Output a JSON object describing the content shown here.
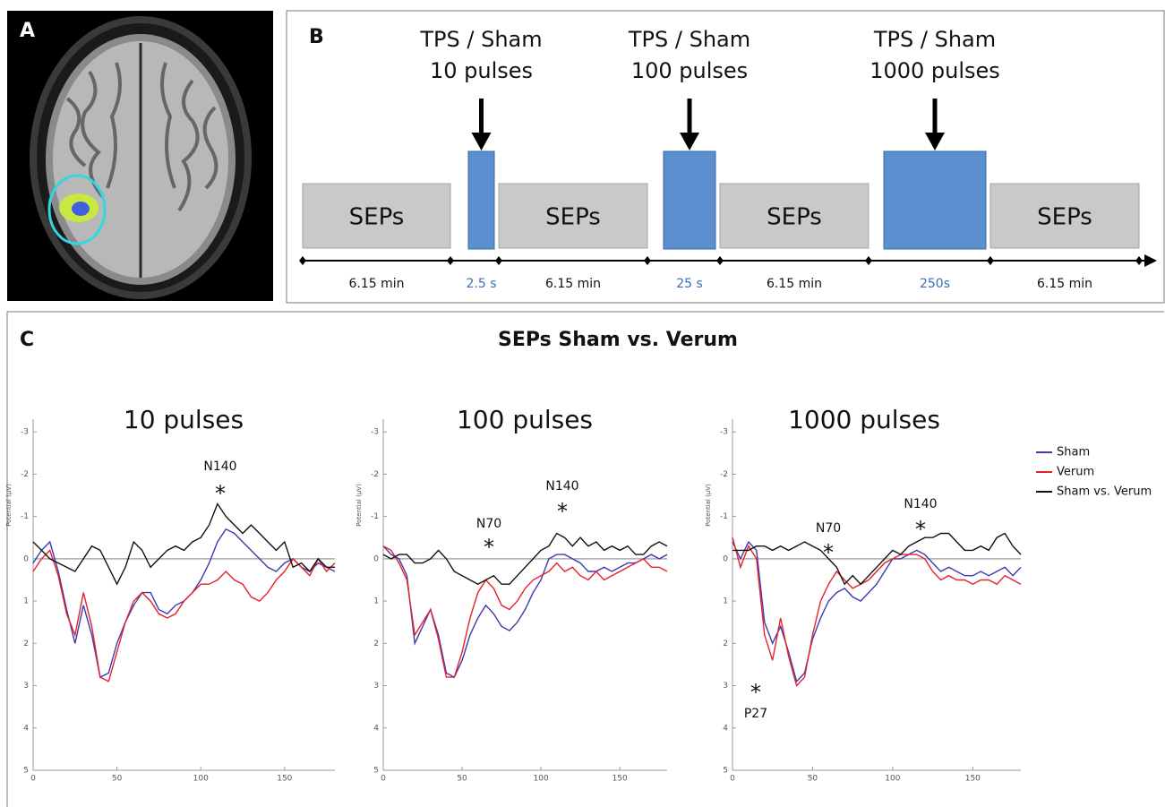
{
  "panel_a": {
    "label": "A"
  },
  "panel_b": {
    "label": "B",
    "stimulations": [
      {
        "title": "TPS / Sham",
        "pulses": "10 pulses",
        "duration": "2.5 s"
      },
      {
        "title": "TPS / Sham",
        "pulses": "100 pulses",
        "duration": "25 s"
      },
      {
        "title": "TPS / Sham",
        "pulses": "1000 pulses",
        "duration": "250s"
      }
    ],
    "blocks": [
      {
        "label": "SEPs",
        "duration": "6.15 min"
      },
      {
        "label": "SEPs",
        "duration": "6.15 min"
      },
      {
        "label": "SEPs",
        "duration": "6.15 min"
      },
      {
        "label": "SEPs",
        "duration": "6.15 min"
      }
    ]
  },
  "panel_c": {
    "label": "C",
    "title": "SEPs Sham vs. Verum"
  },
  "chart_data": [
    {
      "type": "line",
      "title": "10 pulses",
      "ylabel": "Potential (µV)",
      "x": [
        0,
        5,
        10,
        15,
        20,
        25,
        30,
        35,
        40,
        45,
        50,
        55,
        60,
        65,
        70,
        75,
        80,
        85,
        90,
        95,
        100,
        105,
        110,
        115,
        120,
        125,
        130,
        135,
        140,
        145,
        150,
        155,
        160,
        165,
        170,
        175,
        180
      ],
      "xlim": [
        0,
        180
      ],
      "xticks": [
        0,
        50,
        100,
        150
      ],
      "ylim": [
        -3.3,
        5
      ],
      "yticks": [
        -3,
        -2,
        -1,
        0,
        1,
        2,
        3,
        4,
        5
      ],
      "y_inverted": true,
      "series": [
        {
          "color": "#3b3bb0",
          "values": [
            0.1,
            -0.2,
            -0.4,
            0.3,
            1.2,
            2.0,
            1.1,
            1.8,
            2.8,
            2.7,
            2.0,
            1.5,
            1.1,
            0.8,
            0.8,
            1.2,
            1.3,
            1.1,
            1.0,
            0.8,
            0.5,
            0.1,
            -0.4,
            -0.7,
            -0.6,
            -0.4,
            -0.2,
            0.0,
            0.2,
            0.3,
            0.1,
            0.0,
            0.2,
            0.3,
            0.1,
            0.2,
            0.3
          ]
        },
        {
          "color": "#e8202a",
          "values": [
            0.3,
            0.0,
            -0.2,
            0.4,
            1.3,
            1.8,
            0.8,
            1.6,
            2.8,
            2.9,
            2.2,
            1.5,
            1.0,
            0.8,
            1.0,
            1.3,
            1.4,
            1.3,
            1.0,
            0.8,
            0.6,
            0.6,
            0.5,
            0.3,
            0.5,
            0.6,
            0.9,
            1.0,
            0.8,
            0.5,
            0.3,
            0.0,
            0.2,
            0.4,
            0.0,
            0.3,
            0.1
          ]
        },
        {
          "color": "#111111",
          "values": [
            -0.4,
            -0.2,
            0.0,
            0.1,
            0.2,
            0.3,
            0.0,
            -0.3,
            -0.2,
            0.2,
            0.6,
            0.2,
            -0.4,
            -0.2,
            0.2,
            0.0,
            -0.2,
            -0.3,
            -0.2,
            -0.4,
            -0.5,
            -0.8,
            -1.3,
            -1.0,
            -0.8,
            -0.6,
            -0.8,
            -0.6,
            -0.4,
            -0.2,
            -0.4,
            0.2,
            0.1,
            0.3,
            0.0,
            0.2,
            0.2
          ]
        }
      ],
      "annotations": [
        {
          "label": "N140",
          "marker": "*"
        }
      ]
    },
    {
      "type": "line",
      "title": "100 pulses",
      "ylabel": "Potential (µV)",
      "x": [
        0,
        5,
        10,
        15,
        20,
        25,
        30,
        35,
        40,
        45,
        50,
        55,
        60,
        65,
        70,
        75,
        80,
        85,
        90,
        95,
        100,
        105,
        110,
        115,
        120,
        125,
        130,
        135,
        140,
        145,
        150,
        155,
        160,
        165,
        170,
        175,
        180
      ],
      "xlim": [
        0,
        180
      ],
      "xticks": [
        0,
        50,
        100,
        150
      ],
      "ylim": [
        -3.3,
        5
      ],
      "yticks": [
        -3,
        -2,
        -1,
        0,
        1,
        2,
        3,
        4,
        5
      ],
      "y_inverted": true,
      "series": [
        {
          "color": "#3b3bb0",
          "values": [
            -0.3,
            -0.1,
            0.0,
            0.4,
            2.0,
            1.6,
            1.2,
            1.8,
            2.7,
            2.8,
            2.4,
            1.8,
            1.4,
            1.1,
            1.3,
            1.6,
            1.7,
            1.5,
            1.2,
            0.8,
            0.5,
            0.0,
            -0.1,
            -0.1,
            0.0,
            0.1,
            0.3,
            0.3,
            0.2,
            0.3,
            0.2,
            0.1,
            0.1,
            0.0,
            -0.1,
            0.0,
            -0.1
          ]
        },
        {
          "color": "#e8202a",
          "values": [
            -0.3,
            -0.2,
            0.1,
            0.5,
            1.8,
            1.5,
            1.2,
            1.9,
            2.8,
            2.8,
            2.2,
            1.4,
            0.8,
            0.5,
            0.7,
            1.1,
            1.2,
            1.0,
            0.7,
            0.5,
            0.4,
            0.3,
            0.1,
            0.3,
            0.2,
            0.4,
            0.5,
            0.3,
            0.5,
            0.4,
            0.3,
            0.2,
            0.1,
            0.0,
            0.2,
            0.2,
            0.3
          ]
        },
        {
          "color": "#111111",
          "values": [
            -0.1,
            0.0,
            -0.1,
            -0.1,
            0.1,
            0.1,
            0.0,
            -0.2,
            0.0,
            0.3,
            0.4,
            0.5,
            0.6,
            0.5,
            0.4,
            0.6,
            0.6,
            0.4,
            0.2,
            0.0,
            -0.2,
            -0.3,
            -0.6,
            -0.5,
            -0.3,
            -0.5,
            -0.3,
            -0.4,
            -0.2,
            -0.3,
            -0.2,
            -0.3,
            -0.1,
            -0.1,
            -0.3,
            -0.4,
            -0.3
          ]
        }
      ],
      "annotations": [
        {
          "label": "N70",
          "marker": "*"
        },
        {
          "label": "N140",
          "marker": "*"
        }
      ]
    },
    {
      "type": "line",
      "title": "1000 pulses",
      "ylabel": "Potential (µV)",
      "x": [
        0,
        5,
        10,
        15,
        20,
        25,
        30,
        35,
        40,
        45,
        50,
        55,
        60,
        65,
        70,
        75,
        80,
        85,
        90,
        95,
        100,
        105,
        110,
        115,
        120,
        125,
        130,
        135,
        140,
        145,
        150,
        155,
        160,
        165,
        170,
        175,
        180
      ],
      "xlim": [
        0,
        180
      ],
      "xticks": [
        0,
        50,
        100,
        150
      ],
      "ylim": [
        -3.3,
        5
      ],
      "yticks": [
        -3,
        -2,
        -1,
        0,
        1,
        2,
        3,
        4,
        5
      ],
      "y_inverted": true,
      "series": [
        {
          "name": "Sham",
          "color": "#3b3bb0",
          "values": [
            -0.4,
            0.0,
            -0.4,
            -0.2,
            1.5,
            2.0,
            1.6,
            2.2,
            2.9,
            2.7,
            1.9,
            1.4,
            1.0,
            0.8,
            0.7,
            0.9,
            1.0,
            0.8,
            0.6,
            0.3,
            0.0,
            0.0,
            -0.1,
            -0.2,
            -0.1,
            0.1,
            0.3,
            0.2,
            0.3,
            0.4,
            0.4,
            0.3,
            0.4,
            0.3,
            0.2,
            0.4,
            0.2
          ]
        },
        {
          "name": "Verum",
          "color": "#e8202a",
          "values": [
            -0.5,
            0.2,
            -0.3,
            0.0,
            1.8,
            2.4,
            1.4,
            2.3,
            3.0,
            2.8,
            1.8,
            1.0,
            0.6,
            0.3,
            0.5,
            0.7,
            0.6,
            0.5,
            0.3,
            0.1,
            0.0,
            -0.1,
            -0.1,
            -0.1,
            0.0,
            0.3,
            0.5,
            0.4,
            0.5,
            0.5,
            0.6,
            0.5,
            0.5,
            0.6,
            0.4,
            0.5,
            0.6
          ]
        },
        {
          "name": "Sham vs. Verum",
          "color": "#111111",
          "values": [
            -0.2,
            -0.2,
            -0.2,
            -0.3,
            -0.3,
            -0.2,
            -0.3,
            -0.2,
            -0.3,
            -0.4,
            -0.3,
            -0.2,
            0.0,
            0.2,
            0.6,
            0.4,
            0.6,
            0.4,
            0.2,
            0.0,
            -0.2,
            -0.1,
            -0.3,
            -0.4,
            -0.5,
            -0.5,
            -0.6,
            -0.6,
            -0.4,
            -0.2,
            -0.2,
            -0.3,
            -0.2,
            -0.5,
            -0.6,
            -0.3,
            -0.1
          ]
        }
      ],
      "annotations": [
        {
          "label": "N70",
          "marker": "*"
        },
        {
          "label": "N140",
          "marker": "*"
        },
        {
          "label": "P27",
          "marker": "*"
        }
      ]
    }
  ]
}
